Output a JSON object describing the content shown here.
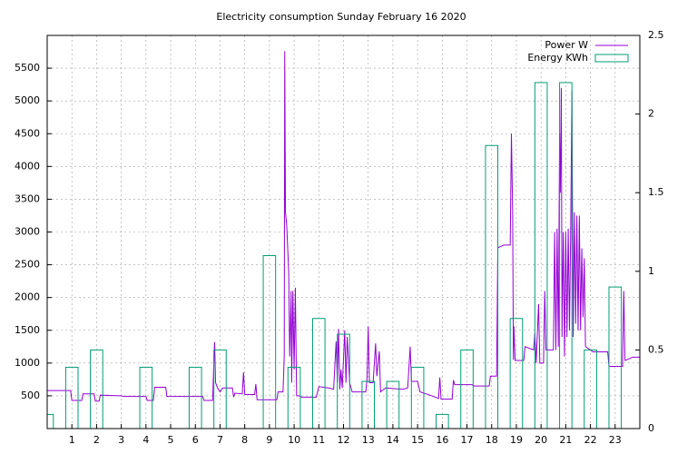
{
  "chart_data": {
    "type": "line-boxes",
    "title": "Electricity consumption Sunday February 16 2020",
    "xlim": [
      0,
      24
    ],
    "xticks": [
      1,
      2,
      3,
      4,
      5,
      6,
      7,
      8,
      9,
      10,
      11,
      12,
      13,
      14,
      15,
      16,
      17,
      18,
      19,
      20,
      21,
      22,
      23
    ],
    "ylim": [
      0,
      6000
    ],
    "yticks": [
      500,
      1000,
      1500,
      2000,
      2500,
      3000,
      3500,
      4000,
      4500,
      5000,
      5500
    ],
    "y2lim": [
      0,
      2.5
    ],
    "y2ticks": [
      0,
      0.5,
      1,
      1.5,
      2,
      2.5
    ],
    "grid": true,
    "legend": "top-right",
    "series": [
      {
        "name": "Power W",
        "color": "#9400d3",
        "kind": "line",
        "x": [
          0,
          0.95,
          1.0,
          1.4,
          1.45,
          1.9,
          1.95,
          2.1,
          2.15,
          3.0,
          3.1,
          4.0,
          4.05,
          4.3,
          4.35,
          4.8,
          4.85,
          6.3,
          6.35,
          6.7,
          6.75,
          6.78,
          6.82,
          6.9,
          7.0,
          7.1,
          7.5,
          7.55,
          7.6,
          7.9,
          7.95,
          8.0,
          8.4,
          8.45,
          8.5,
          9.3,
          9.35,
          9.55,
          9.6,
          9.62,
          9.65,
          9.7,
          9.78,
          9.82,
          9.88,
          9.9,
          9.95,
          10.0,
          10.05,
          10.1,
          10.2,
          10.3,
          10.9,
          11.0,
          11.4,
          11.6,
          11.7,
          11.75,
          11.8,
          11.85,
          11.9,
          11.95,
          12.05,
          12.1,
          12.15,
          12.25,
          12.35,
          12.9,
          12.95,
          13.0,
          13.05,
          13.2,
          13.3,
          13.35,
          13.45,
          13.5,
          13.7,
          14.4,
          14.6,
          14.7,
          14.75,
          15.0,
          15.1,
          15.5,
          15.85,
          15.9,
          15.95,
          16.4,
          16.45,
          16.5,
          17.2,
          17.3,
          17.9,
          17.95,
          18.2,
          18.25,
          18.5,
          18.75,
          18.8,
          18.85,
          18.88,
          18.9,
          18.95,
          19.3,
          19.35,
          19.7,
          19.75,
          19.8,
          19.9,
          19.95,
          20.1,
          20.15,
          20.2,
          20.5,
          20.55,
          20.6,
          20.65,
          20.7,
          20.75,
          20.78,
          20.82,
          20.85,
          20.9,
          20.95,
          21.0,
          21.05,
          21.1,
          21.15,
          21.2,
          21.25,
          21.3,
          21.35,
          21.4,
          21.45,
          21.5,
          21.55,
          21.6,
          21.65,
          21.7,
          21.75,
          21.8,
          22.0,
          22.1,
          22.7,
          22.75,
          23.3,
          23.35,
          23.4,
          23.6,
          23.7,
          24.0
        ],
        "values": [
          580,
          580,
          430,
          430,
          530,
          530,
          420,
          420,
          510,
          500,
          490,
          490,
          430,
          430,
          630,
          630,
          490,
          490,
          430,
          430,
          1030,
          1320,
          700,
          620,
          560,
          620,
          620,
          480,
          540,
          530,
          860,
          520,
          520,
          680,
          440,
          440,
          560,
          560,
          1100,
          5760,
          3300,
          3100,
          2400,
          1100,
          2100,
          700,
          2100,
          900,
          2150,
          500,
          500,
          480,
          480,
          640,
          620,
          600,
          1330,
          700,
          1520,
          600,
          900,
          620,
          1500,
          700,
          1400,
          700,
          560,
          560,
          740,
          1560,
          700,
          700,
          1300,
          800,
          1180,
          560,
          620,
          600,
          620,
          1250,
          720,
          720,
          560,
          510,
          460,
          780,
          450,
          450,
          740,
          670,
          670,
          650,
          650,
          800,
          800,
          2760,
          2800,
          2800,
          4500,
          3280,
          1050,
          1560,
          1040,
          1040,
          1250,
          1200,
          1460,
          1000,
          1900,
          1000,
          1000,
          2100,
          1200,
          1200,
          3000,
          1200,
          3050,
          1250,
          4500,
          3600,
          5200,
          1400,
          3000,
          1100,
          3000,
          1400,
          3050,
          1500,
          3050,
          5150,
          1400,
          3300,
          1600,
          3250,
          1500,
          3250,
          1500,
          2750,
          1700,
          2600,
          1250,
          1200,
          1170,
          1170,
          950,
          950,
          2100,
          1040,
          1070,
          1090,
          1090
        ]
      },
      {
        "name": "Energy KWh",
        "color": "#009e73",
        "kind": "boxes",
        "axis": "y2",
        "x": [
          0,
          1,
          2,
          3,
          4,
          5,
          6,
          7,
          8,
          9,
          10,
          11,
          12,
          13,
          14,
          15,
          16,
          17,
          18,
          19,
          20,
          21,
          22,
          23
        ],
        "values": [
          0.09,
          0.39,
          0.5,
          0,
          0.39,
          0,
          0.39,
          0.5,
          0,
          1.1,
          0.39,
          0.7,
          0.6,
          0.3,
          0.3,
          0.39,
          0.09,
          0.5,
          1.8,
          0.7,
          2.2,
          2.2,
          0.5,
          0.9
        ]
      }
    ]
  }
}
